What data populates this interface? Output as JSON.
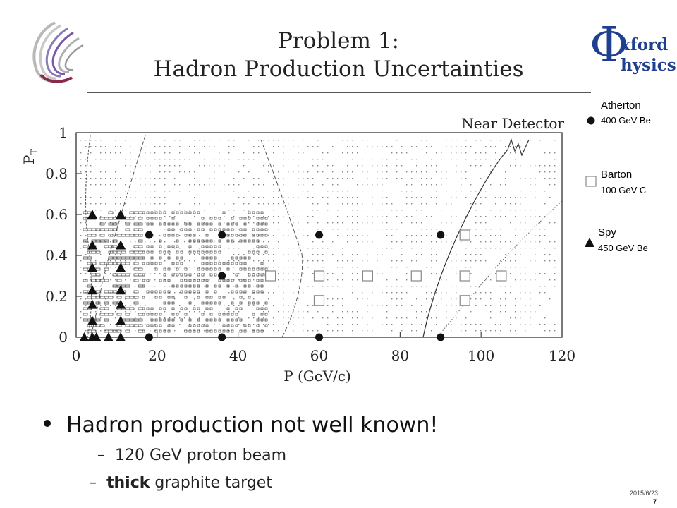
{
  "slide": {
    "title_line1": "Problem 1:",
    "title_line2": "Hadron Production Uncertainties",
    "logo_right": {
      "phi": "Φ",
      "line1": "xford",
      "line2": "hysics"
    },
    "legend": [
      {
        "name": "Atherton",
        "sub": "400 GeV Be",
        "marker": "circle"
      },
      {
        "name": "Barton",
        "sub": "100 GeV C",
        "marker": "square"
      },
      {
        "name": "Spy",
        "sub": "450 GeV Be",
        "marker": "triangle"
      }
    ],
    "bullets": {
      "main": "Hadron production not well known!",
      "sub1_dash": "–",
      "sub1": "120 GeV proton beam",
      "sub2_dash": "–",
      "sub2_bold": "thick",
      "sub2_rest": " graphite target"
    },
    "footer": {
      "date": "2015/6/23",
      "page": "7"
    },
    "colors": {
      "oxford_blue": "#1f3f8f",
      "text": "#222222"
    }
  },
  "chart_data": {
    "type": "scatter",
    "title": "Near Detector",
    "xlabel": "P (GeV/c)",
    "ylabel": "P_T",
    "xlim": [
      0,
      120
    ],
    "ylim": [
      0,
      1
    ],
    "xticks": [
      0,
      20,
      40,
      60,
      80,
      100,
      120
    ],
    "yticks": [
      0,
      0.2,
      0.4,
      0.6,
      0.8,
      1
    ],
    "ytick_labels": [
      "0",
      "0.2",
      "0.4",
      "0.6",
      "0.8",
      "1"
    ],
    "series": [
      {
        "name": "Atherton",
        "marker": "circle",
        "points": [
          [
            18,
            0.5
          ],
          [
            36,
            0.5
          ],
          [
            60,
            0.5
          ],
          [
            90,
            0.5
          ],
          [
            36,
            0.3
          ],
          [
            18,
            0
          ],
          [
            36,
            0
          ],
          [
            60,
            0
          ],
          [
            90,
            0
          ]
        ]
      },
      {
        "name": "Barton",
        "marker": "square",
        "points": [
          [
            96,
            0.5
          ],
          [
            48,
            0.3
          ],
          [
            60,
            0.3
          ],
          [
            72,
            0.3
          ],
          [
            84,
            0.3
          ],
          [
            96,
            0.3
          ],
          [
            105,
            0.3
          ],
          [
            60,
            0.18
          ],
          [
            96,
            0.18
          ]
        ]
      },
      {
        "name": "Spy",
        "marker": "triangle",
        "points": [
          [
            4,
            0.6
          ],
          [
            11,
            0.6
          ],
          [
            4,
            0.45
          ],
          [
            11,
            0.45
          ],
          [
            4,
            0.34
          ],
          [
            11,
            0.34
          ],
          [
            4,
            0.23
          ],
          [
            11,
            0.23
          ],
          [
            4,
            0.16
          ],
          [
            11,
            0.16
          ],
          [
            4,
            0.08
          ],
          [
            11,
            0.08
          ],
          [
            2,
            0
          ],
          [
            4,
            0
          ],
          [
            5,
            0
          ],
          [
            8,
            0
          ],
          [
            11,
            0
          ]
        ]
      }
    ]
  }
}
